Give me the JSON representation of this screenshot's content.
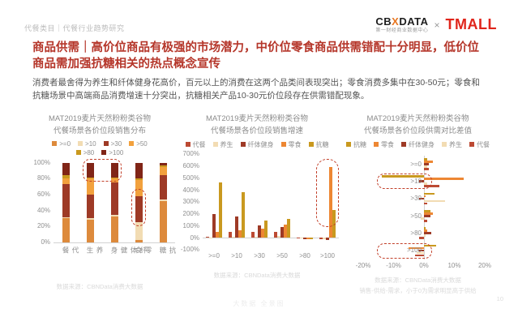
{
  "page": {
    "breadcrumb": "代餐类目｜代餐行业趋势研究",
    "logo": {
      "cbn_left": "CB",
      "cbn_x": "X",
      "cbn_right": "DATA",
      "cbn_sub": "第一财经商业数据中心",
      "times": "×",
      "tmall": "TMALL"
    },
    "title": "商品供需｜高价位商品有极强的市场潜力，中价位零食商品供需错配十分明显，低价位商品需加强抗糖相关的热点概念宣传",
    "body": "消费者最舍得为养生和纤体健身花高价，百元以上的消费在这两个品类间表现突出；零食消费多集中在30-50元；零食和抗糖场景中高端商品消费增速十分突出，抗糖相关产品10-30元价位段存在供需错配现象。",
    "watermark": "大数据 全景图",
    "page_number": "10"
  },
  "footnotes": {
    "chart1": "数据来源：CBNData消费大数据",
    "chart2": "数据来源：CBNData消费大数据",
    "chart3_line1": "数据来源：CBNData消费大数据",
    "chart3_line2": "销售-供给-需求，小于0为需求明显高于供给"
  },
  "colors": {
    "title_red": "#b5362a",
    "tmall_red": "#e0251b",
    "cbn_orange": "#e87722",
    "annotation_dash": "#c2402a"
  },
  "chart_data": [
    {
      "type": "bar",
      "variant": "stacked-percent",
      "title_line1": "MAT2019麦片天然粉粉类谷物",
      "title_line2": "代餐场景各价位段销售分布",
      "categories": [
        "代餐",
        "养生",
        "纤体健身",
        "零食",
        "抗糖"
      ],
      "series": [
        {
          "name": ">=0",
          "color": "#dd8a3c",
          "values": [
            30,
            28,
            33,
            3,
            52
          ]
        },
        {
          "name": ">10",
          "color": "#f2dcb3",
          "values": [
            2,
            2,
            2,
            22,
            2
          ]
        },
        {
          "name": ">30",
          "color": "#9e3a26",
          "values": [
            41,
            30,
            40,
            33,
            31
          ]
        },
        {
          "name": ">50",
          "color": "#f2a13d",
          "values": [
            8,
            20,
            5,
            20,
            10
          ]
        },
        {
          "name": ">80",
          "color": "#c9991f",
          "values": [
            4,
            2,
            2,
            2,
            2
          ]
        },
        {
          "name": ">100",
          "color": "#802517",
          "values": [
            15,
            18,
            18,
            20,
            3
          ]
        }
      ],
      "ylabel": "",
      "xlabel": "",
      "ylim": [
        0,
        100
      ],
      "yticks": [
        0,
        20,
        40,
        60,
        80,
        100
      ],
      "grid": false,
      "legend_position": "top",
      "annotations": [
        {
          "type": "rect",
          "cat_from": "养生",
          "cat_to": "纤体健身",
          "v_from": 80,
          "v_to": 100
        },
        {
          "type": "rect",
          "cat_from": "零食",
          "cat_to": "零食",
          "v_from": 24,
          "v_to": 62
        }
      ]
    },
    {
      "type": "bar",
      "variant": "grouped",
      "title_line1": "MAT2019麦片天然粉粉类谷物",
      "title_line2": "代餐场景各价位段销售增速",
      "categories": [
        ">=0",
        ">10",
        ">30",
        ">50",
        ">80",
        ">100"
      ],
      "series": [
        {
          "name": "代餐",
          "color": "#bc4a33",
          "values": [
            5,
            50,
            45,
            45,
            3,
            -10
          ]
        },
        {
          "name": "养生",
          "color": "#f2dcb3",
          "values": [
            2,
            8,
            8,
            12,
            3,
            -15
          ]
        },
        {
          "name": "纤体健身",
          "color": "#9e3a26",
          "values": [
            200,
            180,
            100,
            90,
            -12,
            -20
          ]
        },
        {
          "name": "零食",
          "color": "#ed8733",
          "values": [
            45,
            65,
            75,
            110,
            -15,
            590
          ]
        },
        {
          "name": "抗糖",
          "color": "#c9991f",
          "values": [
            460,
            380,
            140,
            155,
            -10,
            230
          ]
        }
      ],
      "ylabel": "",
      "xlabel": "",
      "ylim": [
        -100,
        700
      ],
      "ytick_step": 100,
      "grid": false,
      "legend_position": "top",
      "annotations": [
        {
          "type": "ellipse",
          "category": ">100",
          "y_from": 100,
          "y_to": 660
        }
      ]
    },
    {
      "type": "bar",
      "variant": "horizontal-grouped",
      "title_line1": "MAT2019麦片天然粉粉类谷物",
      "title_line2": "代餐场景各价位段供需对比差值",
      "categories": [
        ">=0",
        ">10",
        ">30",
        ">50",
        ">80",
        ">100"
      ],
      "series": [
        {
          "name": "抗糖",
          "color": "#c9991f",
          "values": [
            1,
            -14,
            3.5,
            2,
            0.5,
            4
          ]
        },
        {
          "name": "零食",
          "color": "#ed8733",
          "values": [
            3,
            13,
            0.5,
            3,
            1,
            -5
          ]
        },
        {
          "name": "纤体健身",
          "color": "#9e3a26",
          "values": [
            1.5,
            -1.5,
            -1.5,
            2,
            2.5,
            -2
          ]
        },
        {
          "name": "养生",
          "color": "#f2dcb3",
          "values": [
            1,
            1,
            7,
            -1,
            0.5,
            -2.5
          ]
        },
        {
          "name": "代餐",
          "color": "#bc4a33",
          "values": [
            1.5,
            5,
            1,
            1,
            -1.5,
            -3
          ]
        }
      ],
      "ylabel": "",
      "xlabel": "",
      "xlim": [
        -20,
        20
      ],
      "xticks": [
        -20,
        -10,
        0,
        10,
        20
      ],
      "grid": false,
      "legend_position": "top",
      "annotations": [
        {
          "type": "rect",
          "category": ">10",
          "x_from": -15.5,
          "x_to": 2
        },
        {
          "type": "rect",
          "category": ">100",
          "x_from": -15.5,
          "x_to": 2
        }
      ]
    }
  ]
}
